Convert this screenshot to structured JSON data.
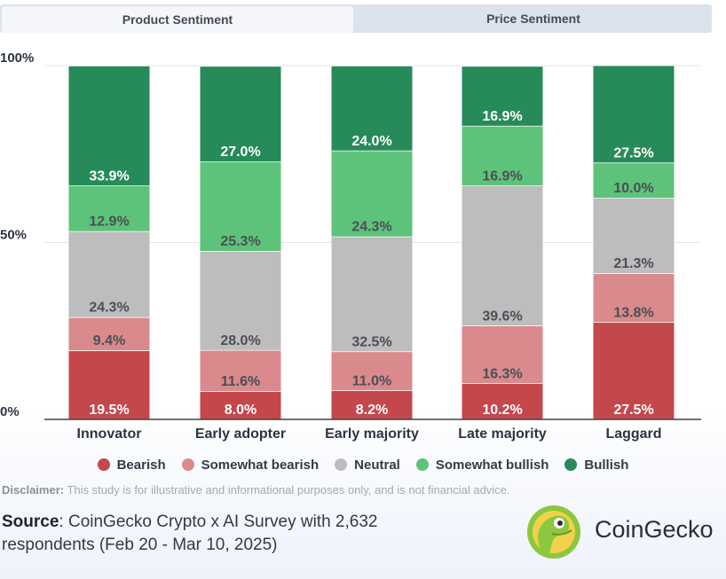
{
  "tabs": [
    {
      "label": "Product Sentiment",
      "active": true
    },
    {
      "label": "Price Sentiment",
      "active": false
    }
  ],
  "chart_data": {
    "type": "bar",
    "stacked": true,
    "percent": true,
    "categories": [
      "Innovator",
      "Early adopter",
      "Early majority",
      "Late majority",
      "Laggard"
    ],
    "series": [
      {
        "name": "Bearish",
        "color": "#c4474c",
        "values": [
          19.5,
          8.0,
          8.2,
          10.2,
          27.5
        ]
      },
      {
        "name": "Somewhat bearish",
        "color": "#da8a8c",
        "values": [
          9.4,
          11.6,
          11.0,
          16.3,
          13.8
        ]
      },
      {
        "name": "Neutral",
        "color": "#bdbdbd",
        "values": [
          24.3,
          28.0,
          32.5,
          39.6,
          21.3
        ]
      },
      {
        "name": "Somewhat bullish",
        "color": "#5ec37a",
        "values": [
          12.9,
          25.3,
          24.3,
          16.9,
          10.0
        ]
      },
      {
        "name": "Bullish",
        "color": "#278a59",
        "values": [
          33.9,
          27.0,
          24.0,
          16.9,
          27.5
        ]
      }
    ],
    "y_ticks": [
      "0%",
      "50%",
      "100%"
    ],
    "ylim": [
      0,
      100
    ],
    "grid": true,
    "legend_position": "bottom",
    "xlabel": "",
    "ylabel": ""
  },
  "disclaimer": {
    "label": "Disclaimer:",
    "text": " This study is for illustrative and informational purposes only, and is not financial advice."
  },
  "source": {
    "label": "Source",
    "text": ": CoinGecko Crypto x AI Survey with 2,632 respondents (Feb 20 - Mar 10, 2025)"
  },
  "brand": {
    "name": "CoinGecko",
    "logo_icon": "gecko-logo-icon"
  }
}
